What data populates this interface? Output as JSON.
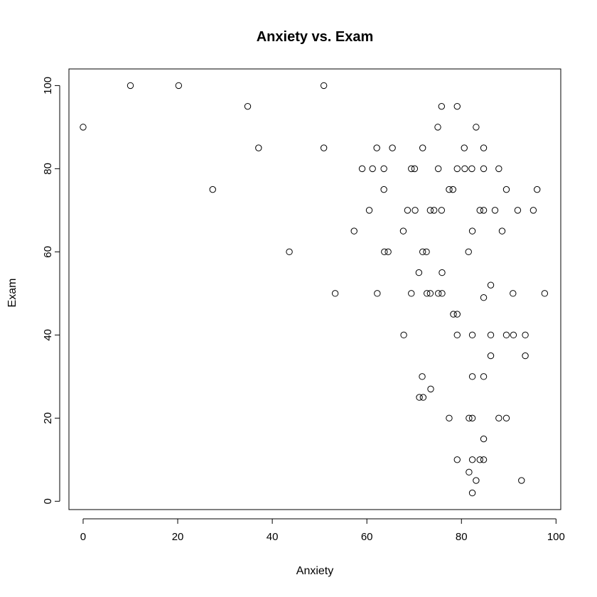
{
  "chart_data": {
    "type": "scatter",
    "title": "Anxiety vs. Exam",
    "xlabel": "Anxiety",
    "ylabel": "Exam",
    "xlim": [
      -3,
      101
    ],
    "ylim": [
      -2,
      104
    ],
    "xticks": [
      0,
      20,
      40,
      60,
      80,
      100
    ],
    "yticks": [
      0,
      20,
      40,
      60,
      80,
      100
    ],
    "marker": "open-circle",
    "color": "#000000",
    "grid": false,
    "legend": "none",
    "points": [
      [
        0,
        90
      ],
      [
        10,
        100
      ],
      [
        20.2,
        100
      ],
      [
        27.4,
        75
      ],
      [
        34.8,
        95
      ],
      [
        37.1,
        85
      ],
      [
        43.6,
        60
      ],
      [
        50.9,
        100
      ],
      [
        50.9,
        85
      ],
      [
        53.3,
        50
      ],
      [
        57.3,
        65
      ],
      [
        59,
        80
      ],
      [
        60.5,
        70
      ],
      [
        61.2,
        80
      ],
      [
        62.1,
        85
      ],
      [
        62.2,
        50
      ],
      [
        63.6,
        80
      ],
      [
        63.6,
        75
      ],
      [
        63.7,
        60
      ],
      [
        64.5,
        60
      ],
      [
        65.4,
        85
      ],
      [
        67.7,
        65
      ],
      [
        67.8,
        40
      ],
      [
        68.6,
        70
      ],
      [
        69.4,
        80
      ],
      [
        69.4,
        50
      ],
      [
        70.1,
        80
      ],
      [
        70.2,
        70
      ],
      [
        71,
        55
      ],
      [
        71.1,
        25
      ],
      [
        71.7,
        30
      ],
      [
        71.8,
        85
      ],
      [
        71.8,
        60
      ],
      [
        71.9,
        25
      ],
      [
        72.6,
        60
      ],
      [
        72.7,
        50
      ],
      [
        73.4,
        70
      ],
      [
        73.4,
        50
      ],
      [
        73.5,
        27
      ],
      [
        74.2,
        70
      ],
      [
        75,
        90
      ],
      [
        75.1,
        80
      ],
      [
        75.1,
        50
      ],
      [
        75.8,
        95
      ],
      [
        75.8,
        70
      ],
      [
        75.9,
        55
      ],
      [
        75.9,
        50
      ],
      [
        77.4,
        75
      ],
      [
        77.4,
        20
      ],
      [
        78.2,
        75
      ],
      [
        78.3,
        45
      ],
      [
        79.1,
        95
      ],
      [
        79.1,
        80
      ],
      [
        79.1,
        45
      ],
      [
        79.1,
        40
      ],
      [
        79.1,
        10
      ],
      [
        80.6,
        85
      ],
      [
        80.7,
        80
      ],
      [
        81.5,
        60
      ],
      [
        81.6,
        20
      ],
      [
        81.6,
        7
      ],
      [
        82.2,
        80
      ],
      [
        82.3,
        65
      ],
      [
        82.3,
        40
      ],
      [
        82.3,
        30
      ],
      [
        82.3,
        20
      ],
      [
        82.3,
        10
      ],
      [
        82.3,
        2
      ],
      [
        83.1,
        90
      ],
      [
        83.1,
        5
      ],
      [
        83.9,
        70
      ],
      [
        83.9,
        10
      ],
      [
        84.7,
        85
      ],
      [
        84.7,
        80
      ],
      [
        84.7,
        70
      ],
      [
        84.7,
        49
      ],
      [
        84.7,
        30
      ],
      [
        84.7,
        15
      ],
      [
        84.7,
        10
      ],
      [
        86.2,
        52
      ],
      [
        86.2,
        40
      ],
      [
        86.2,
        35
      ],
      [
        87.1,
        70
      ],
      [
        87.9,
        80
      ],
      [
        87.9,
        20
      ],
      [
        88.6,
        65
      ],
      [
        89.5,
        75
      ],
      [
        89.5,
        40
      ],
      [
        89.5,
        20
      ],
      [
        90.9,
        50
      ],
      [
        91,
        40
      ],
      [
        91.9,
        70
      ],
      [
        92.7,
        5
      ],
      [
        93.5,
        40
      ],
      [
        93.5,
        35
      ],
      [
        95.2,
        70
      ],
      [
        96,
        75
      ],
      [
        97.6,
        50
      ]
    ]
  }
}
